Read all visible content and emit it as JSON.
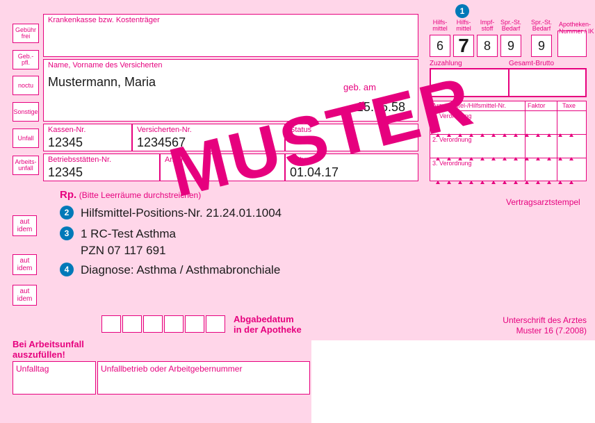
{
  "leftboxes": {
    "b1": "Gebühr\nfrei",
    "b2": "Geb.-\npfl.",
    "b3": "noctu",
    "b4": "Sonstige",
    "b5": "Unfall",
    "b6": "Arbeits-\nunfall"
  },
  "krankenkasse": {
    "label": "Krankenkasse bzw. Kostenträger",
    "value": ""
  },
  "name": {
    "label": "Name, Vorname des Versicherten",
    "value": "Mustermann, Maria",
    "geb_label": "geb. am",
    "geb_value": "15.06.58"
  },
  "kassen": {
    "label": "Kassen-Nr.",
    "value": "12345"
  },
  "vers": {
    "label": "Versicherten-Nr.",
    "value": "1234567"
  },
  "status": {
    "label": "Status",
    "value": ""
  },
  "betrieb": {
    "label": "Betriebsstätten-Nr.",
    "value": "12345"
  },
  "arzt": {
    "label": "Arzt-Nr.",
    "value": ""
  },
  "datum": {
    "label": "Datum",
    "value": "01.04.17"
  },
  "topnums": {
    "headers": [
      "Hilfs-\nmittel",
      "Hilfs-\nmittel",
      "Impf-\nstoff",
      "Spr.-St.\nBedarf",
      "Spr.-St.\nBedarf"
    ],
    "values": [
      "6",
      "7",
      "8",
      "9",
      "9"
    ]
  },
  "apo": {
    "label": "Apotheken-Nummer / IK"
  },
  "zg": {
    "left": "Zuzahlung",
    "right": "Gesamt-Brutto"
  },
  "vgrid": {
    "hdr1": "Arzneimittel-/Hilfsmittel-Nr.",
    "hdr2": "Faktor",
    "hdr3": "Taxe",
    "r1": "1. Verordnung",
    "r2": "2. Verordnung",
    "r3": "3. Verordnung"
  },
  "stempel": "Vertragsarztstempel",
  "rp": {
    "bold": "Rp.",
    "rest": "(Bitte Leerräume durchstreichen)"
  },
  "autidem": "aut\nidem",
  "rx": {
    "l1": "Hilfsmittel-Positions-Nr. 21.24.01.1004",
    "l2": "1 RC-Test Asthma",
    "l3": "PZN 07 117 691",
    "l4": "Diagnose: Asthma / Asthmabronchiale"
  },
  "abgabe": {
    "label1": "Abgabedatum",
    "label2": "in der Apotheke"
  },
  "arbeitsunfall": {
    "l1": "Bei Arbeitsunfall",
    "l2": "auszufüllen!"
  },
  "unfalltag": "Unfalltag",
  "unfallbetrieb": "Unfallbetrieb oder Arbeitgebernummer",
  "sig": {
    "l1": "Unterschrift des Arztes",
    "l2": "Muster 16 (7.2008)"
  },
  "muster": "MUSTER",
  "colors": {
    "pink": "#e6007e",
    "bg": "#ffd6e9",
    "blue": "#0079b8"
  }
}
